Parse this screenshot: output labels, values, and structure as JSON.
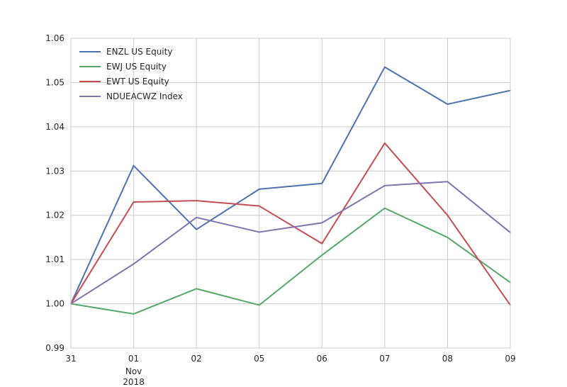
{
  "chart_data": {
    "type": "line",
    "title": "",
    "xlabel": "",
    "ylabel": "",
    "x": [
      "31",
      "01",
      "02",
      "05",
      "06",
      "07",
      "08",
      "09"
    ],
    "x_sublabels": {
      "01": [
        "Nov",
        "2018"
      ]
    },
    "ylim": [
      0.99,
      1.06
    ],
    "yticks": [
      "0.99",
      "1.00",
      "1.01",
      "1.02",
      "1.03",
      "1.04",
      "1.05",
      "1.06"
    ],
    "grid": true,
    "legend_position": "upper-left",
    "series": [
      {
        "name": "ENZL US Equity",
        "color": "#4c72b0",
        "values": [
          1.0,
          1.0312,
          1.0168,
          1.0259,
          1.0272,
          1.0535,
          1.0451,
          1.0482
        ]
      },
      {
        "name": "EWJ US Equity",
        "color": "#55a868",
        "values": [
          1.0,
          0.9977,
          1.0034,
          0.9997,
          1.011,
          1.0216,
          1.015,
          1.0048
        ]
      },
      {
        "name": "EWT US Equity",
        "color": "#c44e52",
        "values": [
          1.0,
          1.023,
          1.0233,
          1.0221,
          1.0136,
          1.0363,
          1.02,
          0.9997
        ]
      },
      {
        "name": "NDUEACWZ Index",
        "color": "#8172b2",
        "values": [
          1.0,
          1.009,
          1.0195,
          1.0162,
          1.0183,
          1.0267,
          1.0276,
          1.0161
        ]
      }
    ]
  }
}
